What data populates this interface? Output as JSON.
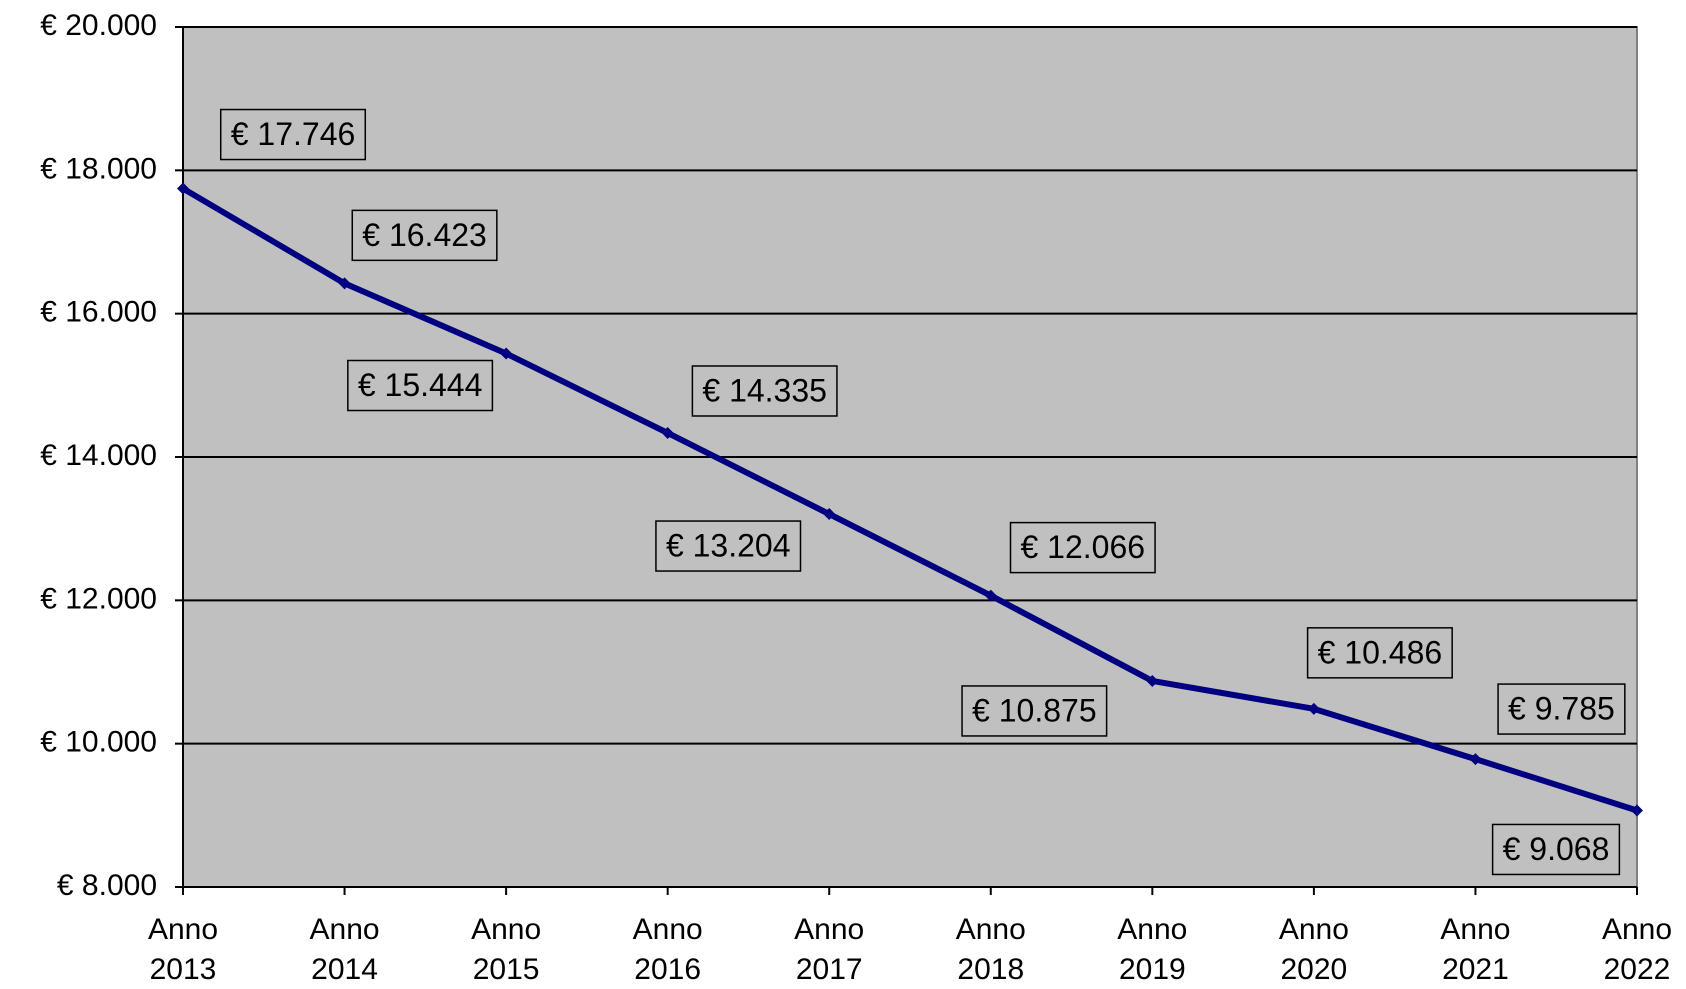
{
  "chart_data": {
    "type": "line",
    "categories": [
      "Anno 2013",
      "Anno 2014",
      "Anno 2015",
      "Anno 2016",
      "Anno 2017",
      "Anno 2018",
      "Anno 2019",
      "Anno 2020",
      "Anno 2021",
      "Anno 2022"
    ],
    "series": [
      {
        "name": null,
        "color": "#000080",
        "values": [
          17746,
          16423,
          15444,
          14335,
          13204,
          12066,
          10875,
          10486,
          9785,
          9068
        ],
        "value_labels": [
          "€ 17.746",
          "€ 16.423",
          "€ 15.444",
          "€ 14.335",
          "€ 13.204",
          "€ 12.066",
          "€ 10.875",
          "€ 10.486",
          "€ 9.785",
          "€ 9.068"
        ]
      }
    ],
    "ylim": [
      8000,
      20000
    ],
    "yticks": [
      {
        "value": 8000,
        "label": "€ 8.000"
      },
      {
        "value": 10000,
        "label": "€ 10.000"
      },
      {
        "value": 12000,
        "label": "€ 12.000"
      },
      {
        "value": 14000,
        "label": "€ 14.000"
      },
      {
        "value": 16000,
        "label": "€ 16.000"
      },
      {
        "value": 18000,
        "label": "€ 18.000"
      },
      {
        "value": 20000,
        "label": "€ 20.000"
      }
    ],
    "grid": true,
    "background": "#c0c0c0"
  }
}
